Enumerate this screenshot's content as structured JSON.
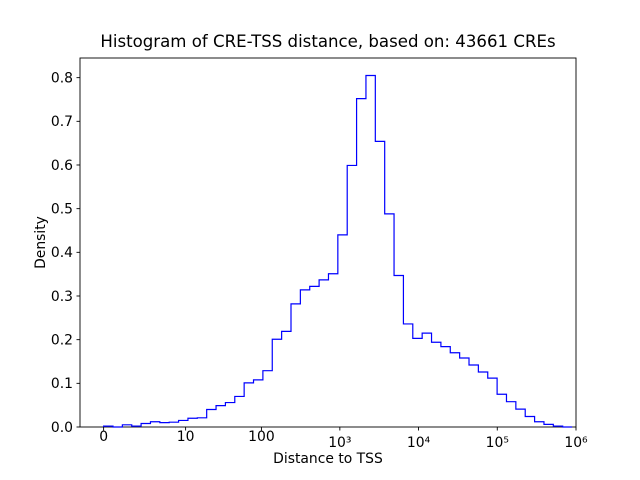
{
  "figure": {
    "background": "#ffffff"
  },
  "chart_data": {
    "type": "histogram",
    "histtype": "step",
    "title": "Histogram of CRE-TSS distance, based on: 43661 CREs",
    "xlabel": "Distance to TSS",
    "ylabel": "Density",
    "n_cres": 43661,
    "x_scale": "symlog (positions computed as log10(1+distance))",
    "xlim_log1p": [
      -0.3,
      6.0
    ],
    "ylim": [
      0,
      0.845
    ],
    "grid": false,
    "legend": null,
    "colors": {
      "line": "#0000ff",
      "axes": "#000000",
      "background": "#ffffff",
      "text": "#000000"
    },
    "xticks": [
      {
        "value": 0,
        "label": "0"
      },
      {
        "value": 10,
        "label": "10"
      },
      {
        "value": 100,
        "label": "100"
      },
      {
        "value": 1000,
        "label": "10³"
      },
      {
        "value": 10000,
        "label": "10⁴"
      },
      {
        "value": 100000,
        "label": "10⁵"
      },
      {
        "value": 1000000,
        "label": "10⁶"
      }
    ],
    "yticks": [
      {
        "value": 0.0,
        "label": "0.0"
      },
      {
        "value": 0.1,
        "label": "0.1"
      },
      {
        "value": 0.2,
        "label": "0.2"
      },
      {
        "value": 0.3,
        "label": "0.3"
      },
      {
        "value": 0.4,
        "label": "0.4"
      },
      {
        "value": 0.5,
        "label": "0.5"
      },
      {
        "value": 0.6,
        "label": "0.6"
      },
      {
        "value": 0.7,
        "label": "0.7"
      },
      {
        "value": 0.8,
        "label": "0.8"
      }
    ],
    "bins": {
      "count": 50,
      "edges_log10_1p": [
        0.0,
        0.119,
        0.238,
        0.357,
        0.476,
        0.595,
        0.714,
        0.833,
        0.952,
        1.071,
        1.19,
        1.309,
        1.428,
        1.547,
        1.666,
        1.785,
        1.904,
        2.023,
        2.142,
        2.261,
        2.38,
        2.499,
        2.618,
        2.737,
        2.856,
        2.975,
        3.094,
        3.213,
        3.332,
        3.451,
        3.57,
        3.689,
        3.808,
        3.927,
        4.046,
        4.165,
        4.284,
        4.403,
        4.522,
        4.641,
        4.76,
        4.879,
        4.998,
        5.117,
        5.236,
        5.355,
        5.474,
        5.593,
        5.712,
        5.831,
        5.95
      ],
      "densities": [
        0.002,
        0.0,
        0.005,
        0.002,
        0.008,
        0.012,
        0.01,
        0.011,
        0.015,
        0.02,
        0.021,
        0.04,
        0.049,
        0.056,
        0.07,
        0.101,
        0.108,
        0.129,
        0.201,
        0.219,
        0.282,
        0.314,
        0.322,
        0.337,
        0.351,
        0.44,
        0.599,
        0.752,
        0.805,
        0.654,
        0.488,
        0.347,
        0.236,
        0.203,
        0.215,
        0.194,
        0.184,
        0.17,
        0.158,
        0.142,
        0.126,
        0.112,
        0.075,
        0.058,
        0.041,
        0.024,
        0.012,
        0.006,
        0.002,
        0.0
      ]
    }
  }
}
